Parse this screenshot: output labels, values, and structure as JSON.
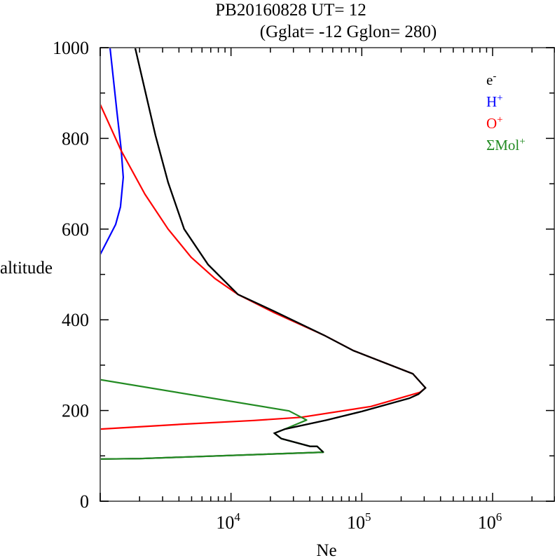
{
  "chart_data": {
    "type": "line",
    "title_line1": "PB20160828   UT=  12",
    "title_line2": "(Gglat= -12   Gglon=  280)",
    "xlabel": "Ne",
    "ylabel": "altitude",
    "xscale": "log",
    "xlim": [
      1000,
      3000000
    ],
    "ylim": [
      0,
      1000
    ],
    "y_ticks": [
      0,
      200,
      400,
      600,
      800,
      1000
    ],
    "y_tick_labels": [
      "0",
      "200",
      "400",
      "600",
      "800",
      "1000"
    ],
    "x_ticks": [
      {
        "base": "10",
        "exp": "4",
        "value": 10000
      },
      {
        "base": "10",
        "exp": "5",
        "value": 100000
      },
      {
        "base": "10",
        "exp": "6",
        "value": 1000000
      }
    ],
    "grid": false,
    "legend_position": "top-right",
    "series": [
      {
        "name": "e",
        "sup": "-",
        "color": "#000000",
        "log10_ne": [
          3.0,
          3.305,
          4.706,
          4.658,
          4.604,
          4.385,
          4.332,
          4.412,
          4.733,
          5.0,
          5.364,
          5.433,
          5.487,
          5.39,
          4.936,
          4.711,
          4.321,
          4.053,
          3.824,
          3.642,
          3.519,
          3.422,
          3.267
        ],
        "alt": [
          93,
          94,
          108,
          121,
          121,
          138,
          150,
          159,
          179,
          198,
          227,
          236,
          250,
          281,
          332,
          366,
          420,
          456,
          522,
          600,
          703,
          807,
          1000
        ]
      },
      {
        "name": "H",
        "sup": "+",
        "color": "#0000ff",
        "log10_ne": [
          3.0,
          3.118,
          3.155,
          3.176,
          3.16,
          3.128,
          3.075
        ],
        "alt": [
          544,
          610,
          649,
          714,
          776,
          858,
          1000
        ]
      },
      {
        "name": "O",
        "sup": "+",
        "color": "#ff0000",
        "log10_ne": [
          3.0,
          3.642,
          4.176,
          4.535,
          5.07,
          5.444,
          5.487,
          5.39,
          4.936,
          4.711,
          4.321,
          4.053,
          3.877,
          3.695,
          3.519,
          3.342,
          3.16,
          3.0
        ],
        "alt": [
          159,
          170,
          178,
          185,
          209,
          240,
          250,
          281,
          332,
          366,
          417,
          456,
          491,
          538,
          600,
          677,
          773,
          875
        ]
      },
      {
        "name": "ΣMol",
        "sup": "+",
        "color": "#228b22",
        "log10_ne": [
          3.0,
          3.305,
          4.706,
          4.658,
          4.604,
          4.385,
          4.332,
          4.412,
          4.578,
          4.444,
          3.0
        ],
        "alt": [
          93,
          94,
          108,
          121,
          121,
          138,
          150,
          159,
          179,
          199,
          268
        ]
      }
    ]
  }
}
